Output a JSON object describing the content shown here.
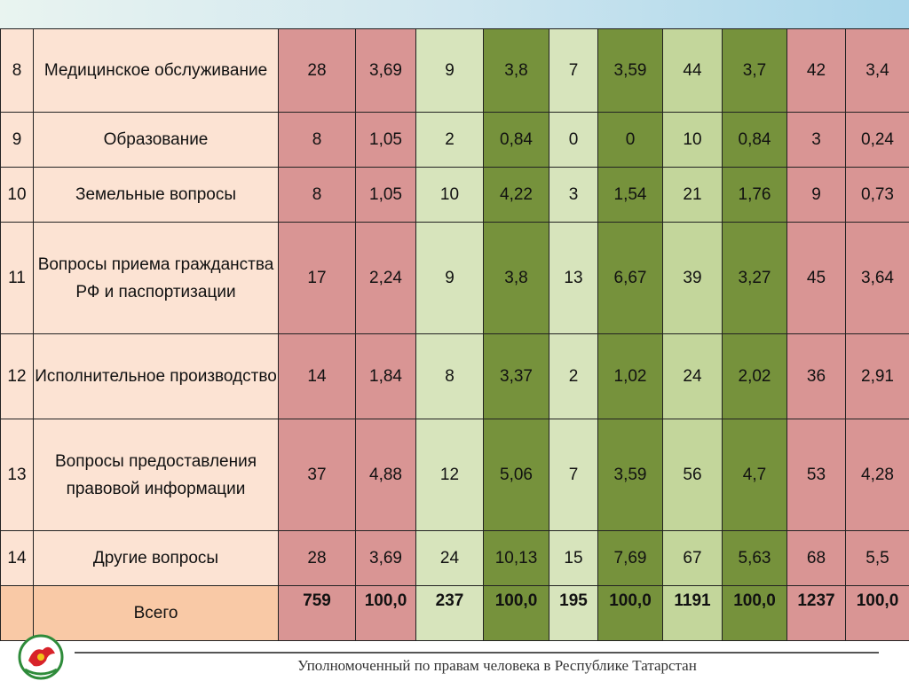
{
  "rows": [
    {
      "num": "8",
      "name": "Медицинское обслуживание",
      "vals": [
        "28",
        "3,69",
        "9",
        "3,8",
        "7",
        "3,59",
        "44",
        "3,7",
        "42",
        "3,4"
      ]
    },
    {
      "num": "9",
      "name": "Образование",
      "vals": [
        "8",
        "1,05",
        "2",
        "0,84",
        "0",
        "0",
        "10",
        "0,84",
        "3",
        "0,24"
      ]
    },
    {
      "num": "10",
      "name": "Земельные вопросы",
      "vals": [
        "8",
        "1,05",
        "10",
        "4,22",
        "3",
        "1,54",
        "21",
        "1,76",
        "9",
        "0,73"
      ]
    },
    {
      "num": "11",
      "name": "Вопросы приема гражданства РФ и паспортизации",
      "vals": [
        "17",
        "2,24",
        "9",
        "3,8",
        "13",
        "6,67",
        "39",
        "3,27",
        "45",
        "3,64"
      ]
    },
    {
      "num": "12",
      "name": "Исполнительное производство",
      "vals": [
        "14",
        "1,84",
        "8",
        "3,37",
        "2",
        "1,02",
        "24",
        "2,02",
        "36",
        "2,91"
      ]
    },
    {
      "num": "13",
      "name": "Вопросы предоставления правовой информации",
      "vals": [
        "37",
        "4,88",
        "12",
        "5,06",
        "7",
        "3,59",
        "56",
        "4,7",
        "53",
        "4,28"
      ]
    },
    {
      "num": "14",
      "name": "Другие вопросы",
      "vals": [
        "28",
        "3,69",
        "24",
        "10,13",
        "15",
        "7,69",
        "67",
        "5,63",
        "68",
        "5,5"
      ]
    }
  ],
  "total": {
    "name": "Всего",
    "vals": [
      "759",
      "100,0",
      "237",
      "100,0",
      "195",
      "100,0",
      "1191",
      "100,0",
      "1237",
      "100,0"
    ]
  },
  "footer": "Уполномоченный по правам человека в Республике Татарстан",
  "colors": {
    "pink": "#d99594",
    "light_green": "#d7e4bc",
    "mid_green": "#c3d69b",
    "dark_green": "#76923c",
    "name_bg": "#fce3d3"
  }
}
